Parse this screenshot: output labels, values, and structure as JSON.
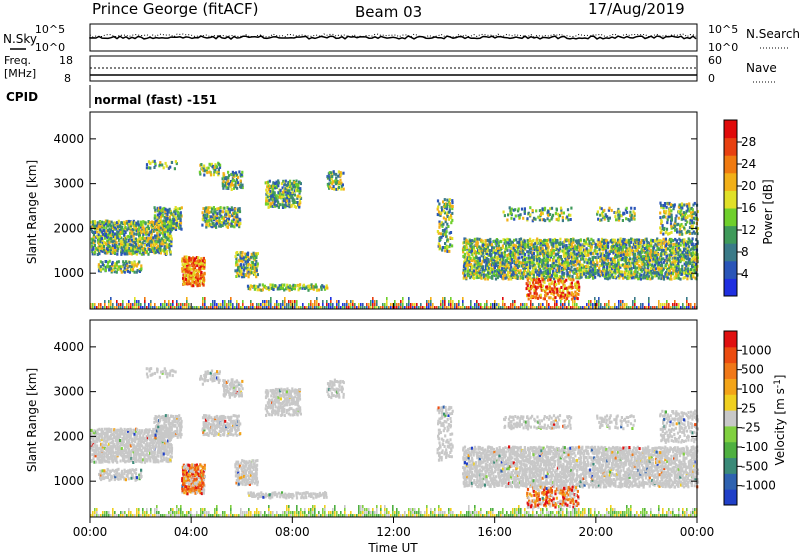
{
  "header": {
    "station": "Prince George (fitACF)",
    "beam": "Beam 03",
    "date": "17/Aug/2019"
  },
  "sky_panel": {
    "left_label": "N.Sky",
    "right_label": "N.Search",
    "left_ticks": [
      "10^5",
      "10^0"
    ],
    "right_ticks": [
      "10^5",
      "10^0"
    ]
  },
  "freq_panel": {
    "left_label_1": "Freq.",
    "left_label_2": "[MHz]",
    "right_label": "Nave",
    "left_ticks": [
      "18",
      "8"
    ],
    "right_ticks": [
      "60",
      "0"
    ]
  },
  "cpid": {
    "label": "CPID",
    "mode_text": "normal (fast)  -151"
  },
  "chart_data": [
    {
      "type": "heatmap",
      "name": "power-panel",
      "ylabel": "Slant Range [km]",
      "y_ticks": [
        "1000",
        "2000",
        "3000",
        "4000"
      ],
      "ylim": [
        200,
        4600
      ],
      "colorbar_label": "Power [dB]",
      "colorbar_ticks": [
        "4",
        "8",
        "12",
        "16",
        "20",
        "24",
        "28"
      ],
      "colorbar_colors": [
        "#1f2fe0",
        "#2a55b8",
        "#3a7a88",
        "#3f9a5a",
        "#6fcf2c",
        "#e0e028",
        "#f2b018",
        "#f07a10",
        "#e84010",
        "#e00a0a"
      ]
    },
    {
      "type": "heatmap",
      "name": "velocity-panel",
      "ylabel": "Slant Range [km]",
      "y_ticks": [
        "1000",
        "2000",
        "3000",
        "4000"
      ],
      "ylim": [
        200,
        4600
      ],
      "colorbar_label": "Velocity [m s^-1]",
      "colorbar_ticks": [
        "1000",
        "500",
        "100",
        "25",
        "-25",
        "-100",
        "-500",
        "-1000"
      ],
      "colorbar_colors": [
        "#2040c8",
        "#2e62b0",
        "#3a8a78",
        "#4fb040",
        "#80d040",
        "#c8c8c8",
        "#f0d020",
        "#f3a418",
        "#f07818",
        "#ec4c10",
        "#e01010"
      ]
    }
  ],
  "x_axis": {
    "label": "Time UT",
    "ticks": [
      "00:00",
      "04:00",
      "08:00",
      "12:00",
      "16:00",
      "20:00",
      "00:00"
    ]
  }
}
